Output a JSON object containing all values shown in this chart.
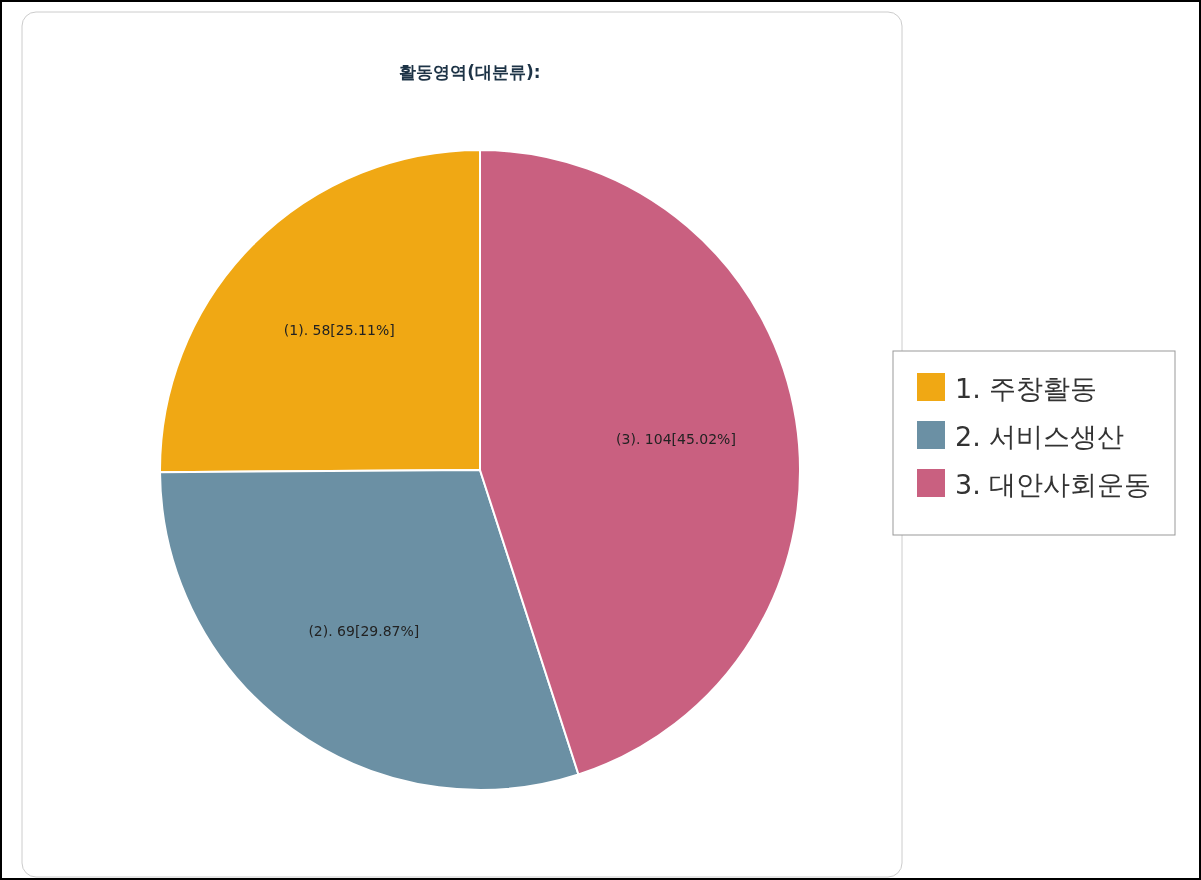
{
  "chart_data": {
    "type": "pie",
    "title": "활동영역(대분류):",
    "categories": [
      "1. 주창활동",
      "2. 서비스생산",
      "3. 대안사회운동"
    ],
    "values": [
      58,
      69,
      104
    ],
    "colors": [
      "#f0a814",
      "#6b90a4",
      "#c96080"
    ],
    "value_labels": [
      "(1). 58[25.11%]",
      "(2). 69[29.87%]",
      "(3). 104[45.02%]"
    ],
    "legend": "right"
  }
}
